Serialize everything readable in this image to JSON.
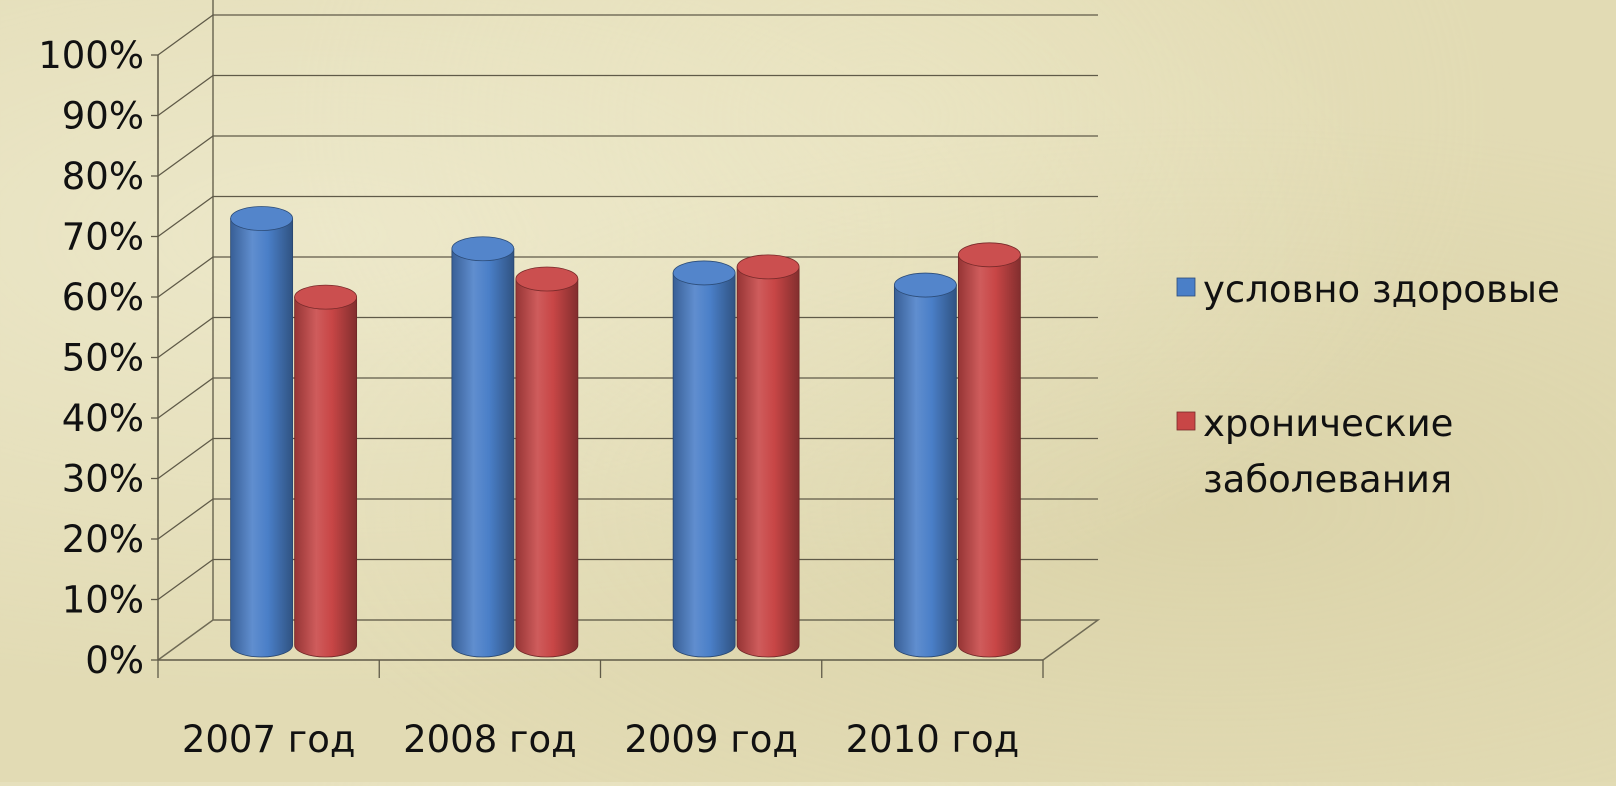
{
  "chart_data": {
    "type": "bar",
    "style": "3d-cylinder",
    "categories": [
      "2007 год",
      "2008 год",
      "2009 год",
      "2010 год"
    ],
    "series": [
      {
        "name": "условно здоровые",
        "values": [
          70,
          65,
          61,
          59
        ],
        "color": "#4a7fc8"
      },
      {
        "name": "хронические заболевания",
        "values": [
          57,
          60,
          62,
          64
        ],
        "color": "#c84646"
      }
    ],
    "ylim": [
      0,
      100
    ],
    "y_ticks": [
      "0%",
      "10%",
      "20%",
      "30%",
      "40%",
      "50%",
      "60%",
      "70%",
      "80%",
      "90%",
      "100%"
    ],
    "grid": true,
    "legend_position": "right",
    "legend": {
      "items": [
        {
          "color": "#4a7fc8",
          "lines": [
            "условно здоровые"
          ]
        },
        {
          "color": "#c84646",
          "lines": [
            "хронические",
            "заболевания"
          ]
        }
      ]
    }
  }
}
